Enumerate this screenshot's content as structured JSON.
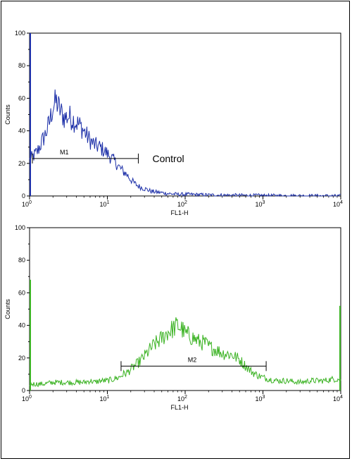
{
  "chart_data": [
    {
      "type": "histogram",
      "xlabel": "FL1-H",
      "ylabel": "Counts",
      "xscale": "log",
      "xlim": [
        1,
        10000
      ],
      "ylim": [
        0,
        100
      ],
      "x_ticks": [
        {
          "base": "10",
          "exp": "0"
        },
        {
          "base": "10",
          "exp": "1"
        },
        {
          "base": "10",
          "exp": "2"
        },
        {
          "base": "10",
          "exp": "3"
        },
        {
          "base": "10",
          "exp": "4"
        }
      ],
      "y_ticks": [
        "0",
        "20",
        "40",
        "60",
        "80",
        "100"
      ],
      "series_color": "#1c2fa8",
      "histogram": {
        "x": [
          1,
          1.1,
          1.25,
          1.4,
          1.6,
          1.8,
          2,
          2.2,
          2.5,
          2.8,
          3.2,
          3.6,
          4,
          4.5,
          5,
          5.6,
          6.3,
          7,
          8,
          9,
          10,
          11,
          12.5,
          14,
          16,
          18,
          20,
          22,
          25,
          28,
          32,
          36,
          40,
          50,
          60,
          80,
          100,
          150,
          200,
          300,
          500,
          1000,
          2000,
          5000,
          10000
        ],
        "counts": [
          22,
          24,
          27,
          32,
          38,
          45,
          55,
          58,
          52,
          48,
          49,
          47,
          45,
          43,
          40,
          36,
          33,
          31,
          30,
          28,
          26,
          24,
          21,
          18,
          15,
          13,
          10,
          8,
          6,
          5,
          4,
          3,
          2.5,
          2,
          1.5,
          1,
          1,
          0.8,
          0.6,
          0.5,
          0.4,
          0.3,
          0.2,
          0.1,
          0
        ],
        "spike_at_min": 100
      },
      "marker": {
        "label": "M1",
        "x_range": [
          1,
          25
        ],
        "y": 23
      },
      "annotation": "Control"
    },
    {
      "type": "histogram",
      "xlabel": "FL1-H",
      "ylabel": "Counts",
      "xscale": "log",
      "xlim": [
        1,
        10000
      ],
      "ylim": [
        0,
        100
      ],
      "x_ticks": [
        {
          "base": "10",
          "exp": "0"
        },
        {
          "base": "10",
          "exp": "1"
        },
        {
          "base": "10",
          "exp": "2"
        },
        {
          "base": "10",
          "exp": "3"
        },
        {
          "base": "10",
          "exp": "4"
        }
      ],
      "y_ticks": [
        "0",
        "20",
        "40",
        "60",
        "80",
        "100"
      ],
      "series_color": "#3cb324",
      "histogram": {
        "x": [
          1,
          1.5,
          2,
          3,
          4,
          5,
          6,
          7,
          8,
          10,
          12,
          14,
          16,
          18,
          20,
          25,
          30,
          35,
          40,
          50,
          60,
          70,
          80,
          90,
          100,
          120,
          150,
          180,
          200,
          250,
          300,
          400,
          500,
          600,
          700,
          800,
          1000,
          1200,
          1500,
          2000,
          3000,
          4000,
          6000,
          8000,
          10000
        ],
        "counts": [
          4,
          4,
          5,
          5,
          5,
          5,
          6,
          5,
          6,
          6,
          7,
          8,
          10,
          11,
          13,
          17,
          21,
          25,
          28,
          32,
          36,
          38,
          40,
          38,
          35,
          33,
          30,
          29,
          27,
          25,
          23,
          22,
          19,
          15,
          12,
          10,
          8,
          7,
          6,
          6,
          5,
          6,
          6,
          7,
          7
        ],
        "spike_at_min": 68,
        "spike_at_max": 52
      },
      "marker": {
        "label": "M2",
        "x_range": [
          15,
          1100
        ],
        "y": 15
      }
    }
  ]
}
